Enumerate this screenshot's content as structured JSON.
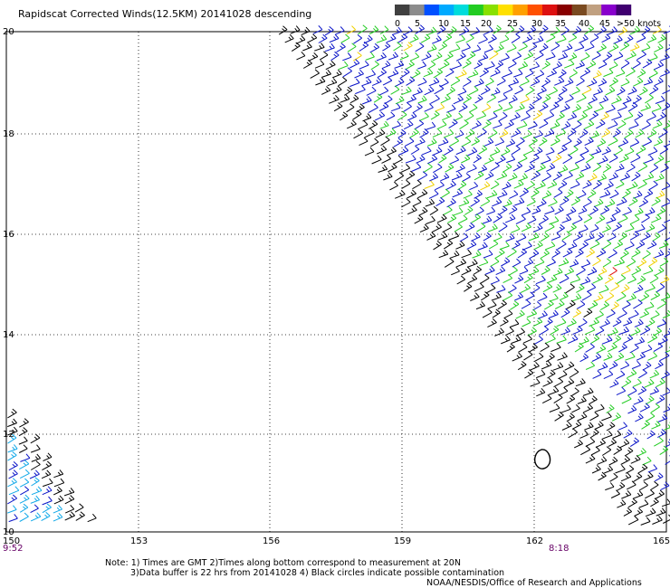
{
  "title": "Rapidscat Corrected Winds(12.5KM) 20141028 descending",
  "legend": {
    "colors": [
      "#404040",
      "#8c8c8c",
      "#0050ff",
      "#00aaff",
      "#00dcdc",
      "#22cc22",
      "#88e000",
      "#ffe000",
      "#ffa000",
      "#ff5000",
      "#dd1010",
      "#880000",
      "#7a4a20",
      "#c0a080",
      "#8800cc",
      "#400070"
    ],
    "tick_labels": [
      "0",
      "5",
      "10",
      "15",
      "20",
      "25",
      "30",
      "35",
      "40",
      "45",
      ">50 knots"
    ]
  },
  "axes": {
    "lat_labels": [
      "20",
      "18",
      "16",
      "14",
      "12",
      "10"
    ],
    "lon_labels": [
      "150",
      "153",
      "156",
      "159",
      "162",
      "165"
    ]
  },
  "pass_times": [
    "9:52",
    "8:18"
  ],
  "notes": {
    "line1": "Note: 1) Times are GMT 2)Times along bottom correspond to measurement at 20N",
    "line2": "3)Data buffer is 22 hrs from 20141028 4) Black circles indicate possible contamination"
  },
  "credit": "NOAA/NESDIS/Office of Research and Applications",
  "colors": {
    "barb_black": "#000000",
    "barb_blue": "#0a14c8",
    "barb_green": "#22cc22",
    "barb_cyan": "#10a8e8",
    "barb_yellow": "#f0d000",
    "barb_orange": "#ff7a00",
    "barb_red": "#e01010",
    "time_label": "#660066"
  }
}
